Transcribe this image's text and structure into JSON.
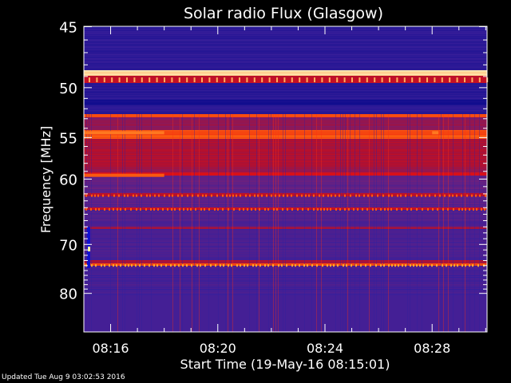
{
  "chart_data": {
    "type": "heatmap",
    "title": "Solar radio Flux (Glasgow)",
    "xlabel": "Start Time (19-May-16 08:15:01)",
    "ylabel": "Frequency [MHz]",
    "x_ticks": [
      "08:16",
      "08:20",
      "08:24",
      "08:28"
    ],
    "x_tick_minutes": [
      16,
      20,
      24,
      28
    ],
    "x_range_minutes": [
      15.0,
      30.05
    ],
    "y_ticks": [
      45,
      50,
      55,
      60,
      70,
      80
    ],
    "y_range_mhz": [
      44.5,
      80.3
    ],
    "frequency_axis_scale": "reciprocal",
    "colormap": [
      "#0a0a8c",
      "#3a1f9a",
      "#6a2080",
      "#b01030",
      "#e81010",
      "#ff6a10",
      "#ffe8b0"
    ],
    "bands": [
      {
        "from": 44.5,
        "to": 45.2,
        "level": 0.1
      },
      {
        "from": 45.2,
        "to": 48.5,
        "level": 0.12
      },
      {
        "from": 48.5,
        "to": 49.0,
        "level": 1.0
      },
      {
        "from": 49.0,
        "to": 49.6,
        "level": 0.55
      },
      {
        "from": 49.6,
        "to": 51.2,
        "level": 0.1
      },
      {
        "from": 51.2,
        "to": 51.6,
        "level": 0.02
      },
      {
        "from": 51.6,
        "to": 52.6,
        "level": 0.12
      },
      {
        "from": 52.6,
        "to": 52.9,
        "level": 0.75
      },
      {
        "from": 52.9,
        "to": 54.2,
        "level": 0.42
      },
      {
        "from": 54.2,
        "to": 55.2,
        "level": 0.78
      },
      {
        "from": 55.2,
        "to": 58.5,
        "level": 0.5
      },
      {
        "from": 58.5,
        "to": 59.2,
        "level": 0.45
      },
      {
        "from": 59.2,
        "to": 59.6,
        "level": 0.62
      },
      {
        "from": 59.6,
        "to": 62.0,
        "level": 0.3
      },
      {
        "from": 62.0,
        "to": 62.4,
        "level": 0.5
      },
      {
        "from": 62.4,
        "to": 64.0,
        "level": 0.28
      },
      {
        "from": 64.0,
        "to": 64.4,
        "level": 0.55
      },
      {
        "from": 64.4,
        "to": 67.0,
        "level": 0.24
      },
      {
        "from": 67.0,
        "to": 67.4,
        "level": 0.45
      },
      {
        "from": 67.4,
        "to": 73.0,
        "level": 0.22
      },
      {
        "from": 73.0,
        "to": 73.6,
        "level": 0.5
      },
      {
        "from": 73.6,
        "to": 74.1,
        "level": 0.75
      },
      {
        "from": 74.1,
        "to": 80.3,
        "level": 0.2
      }
    ]
  },
  "footer": {
    "updated": "Updated Tue Aug  9 03:02:53 2016"
  }
}
